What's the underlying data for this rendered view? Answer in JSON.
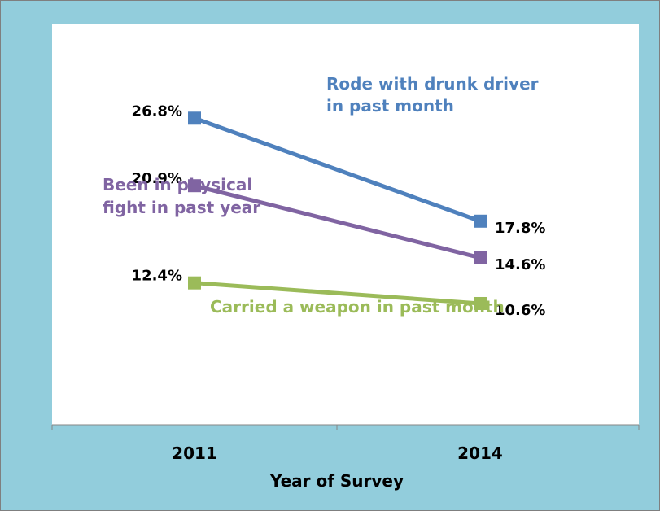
{
  "colors": {
    "background": "#92CDDC",
    "plot_area": "#FFFFFF",
    "frame_border": "#7F7F7F",
    "axis": "#868686",
    "text": "#000000"
  },
  "chart_data": {
    "type": "line",
    "categories": [
      "2011",
      "2014"
    ],
    "xlabel": "Year of Survey",
    "ylabel": "",
    "title": "",
    "grid": false,
    "legend": "inline labels",
    "ylim": [
      0,
      35
    ],
    "series": [
      {
        "name": "Rode with drunk driver in past month",
        "label_lines": [
          "Rode with drunk driver",
          "in past month"
        ],
        "color": "#4F81BD",
        "values": [
          26.8,
          17.8
        ],
        "value_labels": [
          "26.8%",
          "17.8%"
        ]
      },
      {
        "name": "Been in physical fight in past year",
        "label_lines": [
          "Been in physical",
          "fight in past year"
        ],
        "color": "#8064A2",
        "values": [
          20.9,
          14.6
        ],
        "value_labels": [
          "20.9%",
          "14.6%"
        ]
      },
      {
        "name": "Carried a weapon in past month",
        "label_lines": [
          "Carried a weapon in past month"
        ],
        "color": "#9BBB59",
        "values": [
          12.4,
          10.6
        ],
        "value_labels": [
          "12.4%",
          "10.6%"
        ]
      }
    ]
  }
}
